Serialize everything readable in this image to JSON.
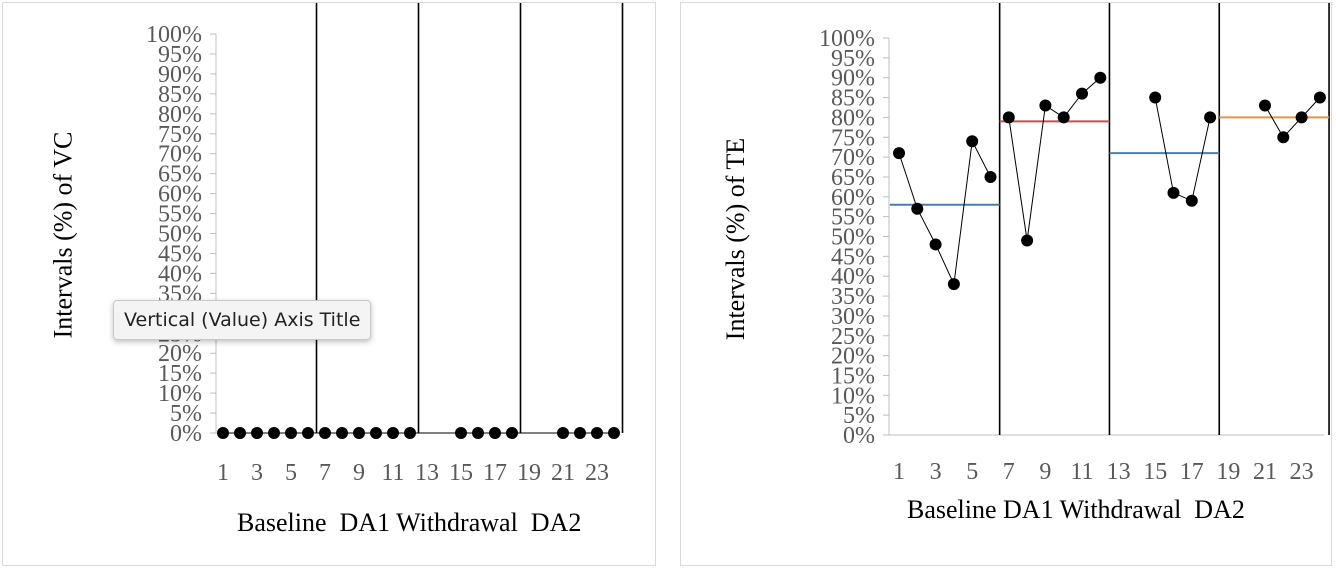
{
  "tooltip": {
    "text": "Vertical (Value) Axis Title"
  },
  "chart_data": [
    {
      "type": "line",
      "ylabel": "Intervals (%) of VC",
      "xlabel": "Baseline  DA1 Withdrawal  DA2",
      "ylim": [
        0,
        100
      ],
      "yticks": [
        "0%",
        "5%",
        "10%",
        "15%",
        "20%",
        "25%",
        "30%",
        "35%",
        "40%",
        "45%",
        "50%",
        "55%",
        "60%",
        "65%",
        "70%",
        "75%",
        "80%",
        "85%",
        "90%",
        "95%",
        "100%"
      ],
      "xticks": [
        "1",
        "3",
        "5",
        "7",
        "9",
        "11",
        "13",
        "15",
        "17",
        "19",
        "21",
        "23"
      ],
      "xrange": [
        1,
        24
      ],
      "phase_lines_after": [
        6,
        12,
        18,
        24
      ],
      "series": [
        {
          "x": [
            1,
            2,
            3,
            4,
            5,
            6,
            7,
            8,
            9,
            10,
            11,
            12,
            15,
            16,
            17,
            18,
            21,
            22,
            23,
            24
          ],
          "y": [
            0,
            0,
            0,
            0,
            0,
            0,
            0,
            0,
            0,
            0,
            0,
            0,
            0,
            0,
            0,
            0,
            0,
            0,
            0,
            0
          ]
        }
      ],
      "phase_means": [],
      "colors": {
        "data": "#000000"
      }
    },
    {
      "type": "line",
      "ylabel": "Intervals (%) of TE",
      "xlabel": "Baseline DA1 Withdrawal  DA2",
      "ylim": [
        0,
        100
      ],
      "yticks": [
        "0%",
        "5%",
        "10%",
        "15%",
        "20%",
        "25%",
        "30%",
        "35%",
        "40%",
        "45%",
        "50%",
        "55%",
        "60%",
        "65%",
        "70%",
        "75%",
        "80%",
        "85%",
        "90%",
        "95%",
        "100%"
      ],
      "xticks": [
        "1",
        "3",
        "5",
        "7",
        "9",
        "11",
        "13",
        "15",
        "17",
        "19",
        "21",
        "23"
      ],
      "xrange": [
        1,
        24
      ],
      "phase_lines_after": [
        6,
        12,
        18,
        24
      ],
      "series": [
        {
          "x": [
            1,
            2,
            3,
            4,
            5,
            6
          ],
          "y": [
            71,
            57,
            48,
            38,
            74,
            65
          ]
        },
        {
          "x": [
            7,
            8,
            9,
            10,
            11,
            12
          ],
          "y": [
            80,
            49,
            83,
            80,
            86,
            90
          ]
        },
        {
          "x": [
            15,
            16,
            17,
            18
          ],
          "y": [
            85,
            61,
            59,
            80
          ]
        },
        {
          "x": [
            21,
            22,
            23,
            24
          ],
          "y": [
            83,
            75,
            80,
            85
          ]
        }
      ],
      "phase_means": [
        {
          "x_from": 1,
          "x_to": 6,
          "y": 58,
          "color": "#4a7eab"
        },
        {
          "x_from": 7,
          "x_to": 12,
          "y": 79,
          "color": "#c0504d"
        },
        {
          "x_from": 13,
          "x_to": 18,
          "y": 71,
          "color": "#4a7eab"
        },
        {
          "x_from": 19,
          "x_to": 24,
          "y": 80,
          "color": "#e3963e"
        }
      ],
      "colors": {
        "data": "#000000"
      }
    }
  ]
}
